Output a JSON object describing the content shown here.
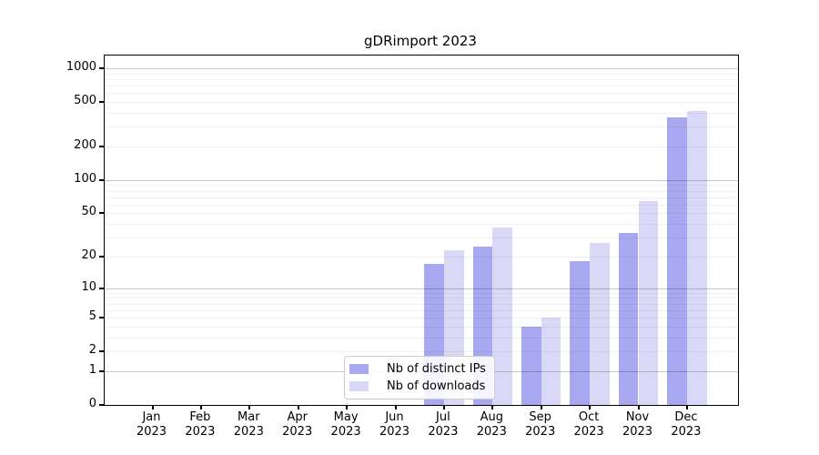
{
  "chart_data": {
    "type": "bar",
    "title": "gDRimport 2023",
    "year_label": "2023",
    "categories": [
      "Jan",
      "Feb",
      "Mar",
      "Apr",
      "May",
      "Jun",
      "Jul",
      "Aug",
      "Sep",
      "Oct",
      "Nov",
      "Dec"
    ],
    "series": [
      {
        "name": "Nb of distinct IPs",
        "color": "#a8a8f0",
        "values": [
          0,
          0,
          0,
          0,
          0,
          0,
          17,
          25,
          4,
          18,
          33,
          365
        ]
      },
      {
        "name": "Nb of downloads",
        "color": "#d9d9f7",
        "values": [
          0,
          0,
          0,
          0,
          0,
          0,
          23,
          37,
          5,
          27,
          65,
          415
        ]
      }
    ],
    "y_ticks": [
      1000,
      500,
      200,
      100,
      50,
      20,
      10,
      5,
      2,
      1,
      0
    ],
    "y_scale": "log10(value+1)",
    "ylim": [
      0,
      1300
    ],
    "grid": true,
    "legend_position": "bottom-center"
  }
}
